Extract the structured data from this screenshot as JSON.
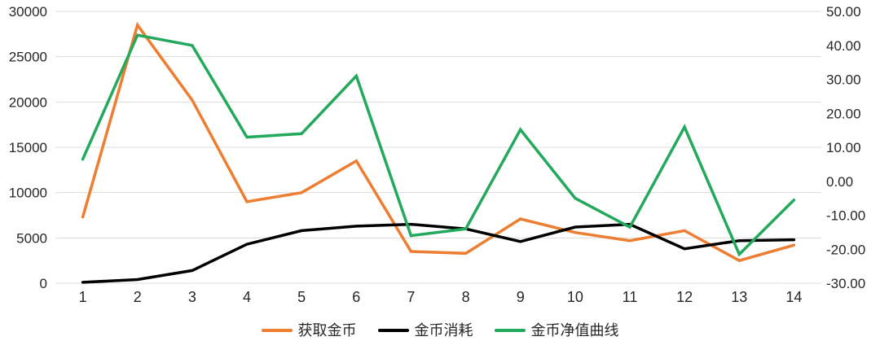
{
  "chart_data": {
    "type": "line",
    "title": "",
    "xlabel": "",
    "ylabel_left": "",
    "ylabel_right": "",
    "grid": true,
    "legend_position": "bottom",
    "x_categories": [
      "1",
      "2",
      "3",
      "4",
      "5",
      "6",
      "7",
      "8",
      "9",
      "10",
      "11",
      "12",
      "13",
      "14"
    ],
    "left_axis": {
      "min": 0,
      "max": 30000,
      "step": 5000,
      "tick_labels": [
        "0",
        "5000",
        "10000",
        "15000",
        "20000",
        "25000",
        "30000"
      ]
    },
    "right_axis": {
      "min": -30,
      "max": 50,
      "step": 10,
      "tick_labels": [
        "-30.00",
        "-20.00",
        "-10.00",
        "0.00",
        "10.00",
        "20.00",
        "30.00",
        "40.00",
        "50.00"
      ]
    },
    "series": [
      {
        "name": "获取金币",
        "axis": "left",
        "color": "#ED7D31",
        "values": [
          7300,
          28500,
          20200,
          9000,
          10000,
          13500,
          3500,
          3300,
          7100,
          5600,
          4700,
          5800,
          2500,
          4200
        ]
      },
      {
        "name": "金币消耗",
        "axis": "left",
        "color": "#000000",
        "values": [
          100,
          400,
          1400,
          4300,
          5800,
          6300,
          6500,
          6000,
          4600,
          6200,
          6500,
          3800,
          4700,
          4800
        ]
      },
      {
        "name": "金币净值曲线",
        "axis": "right",
        "color": "#23A95C",
        "values": [
          6.5,
          43,
          40,
          13,
          14,
          31,
          -16,
          -14,
          15.2,
          -5,
          -13.5,
          16,
          -21.5,
          -5.5
        ]
      }
    ]
  },
  "style": {
    "gridline_color": "#DCDCDC",
    "axis_text_color": "#262626",
    "background": "#FFFFFF"
  }
}
